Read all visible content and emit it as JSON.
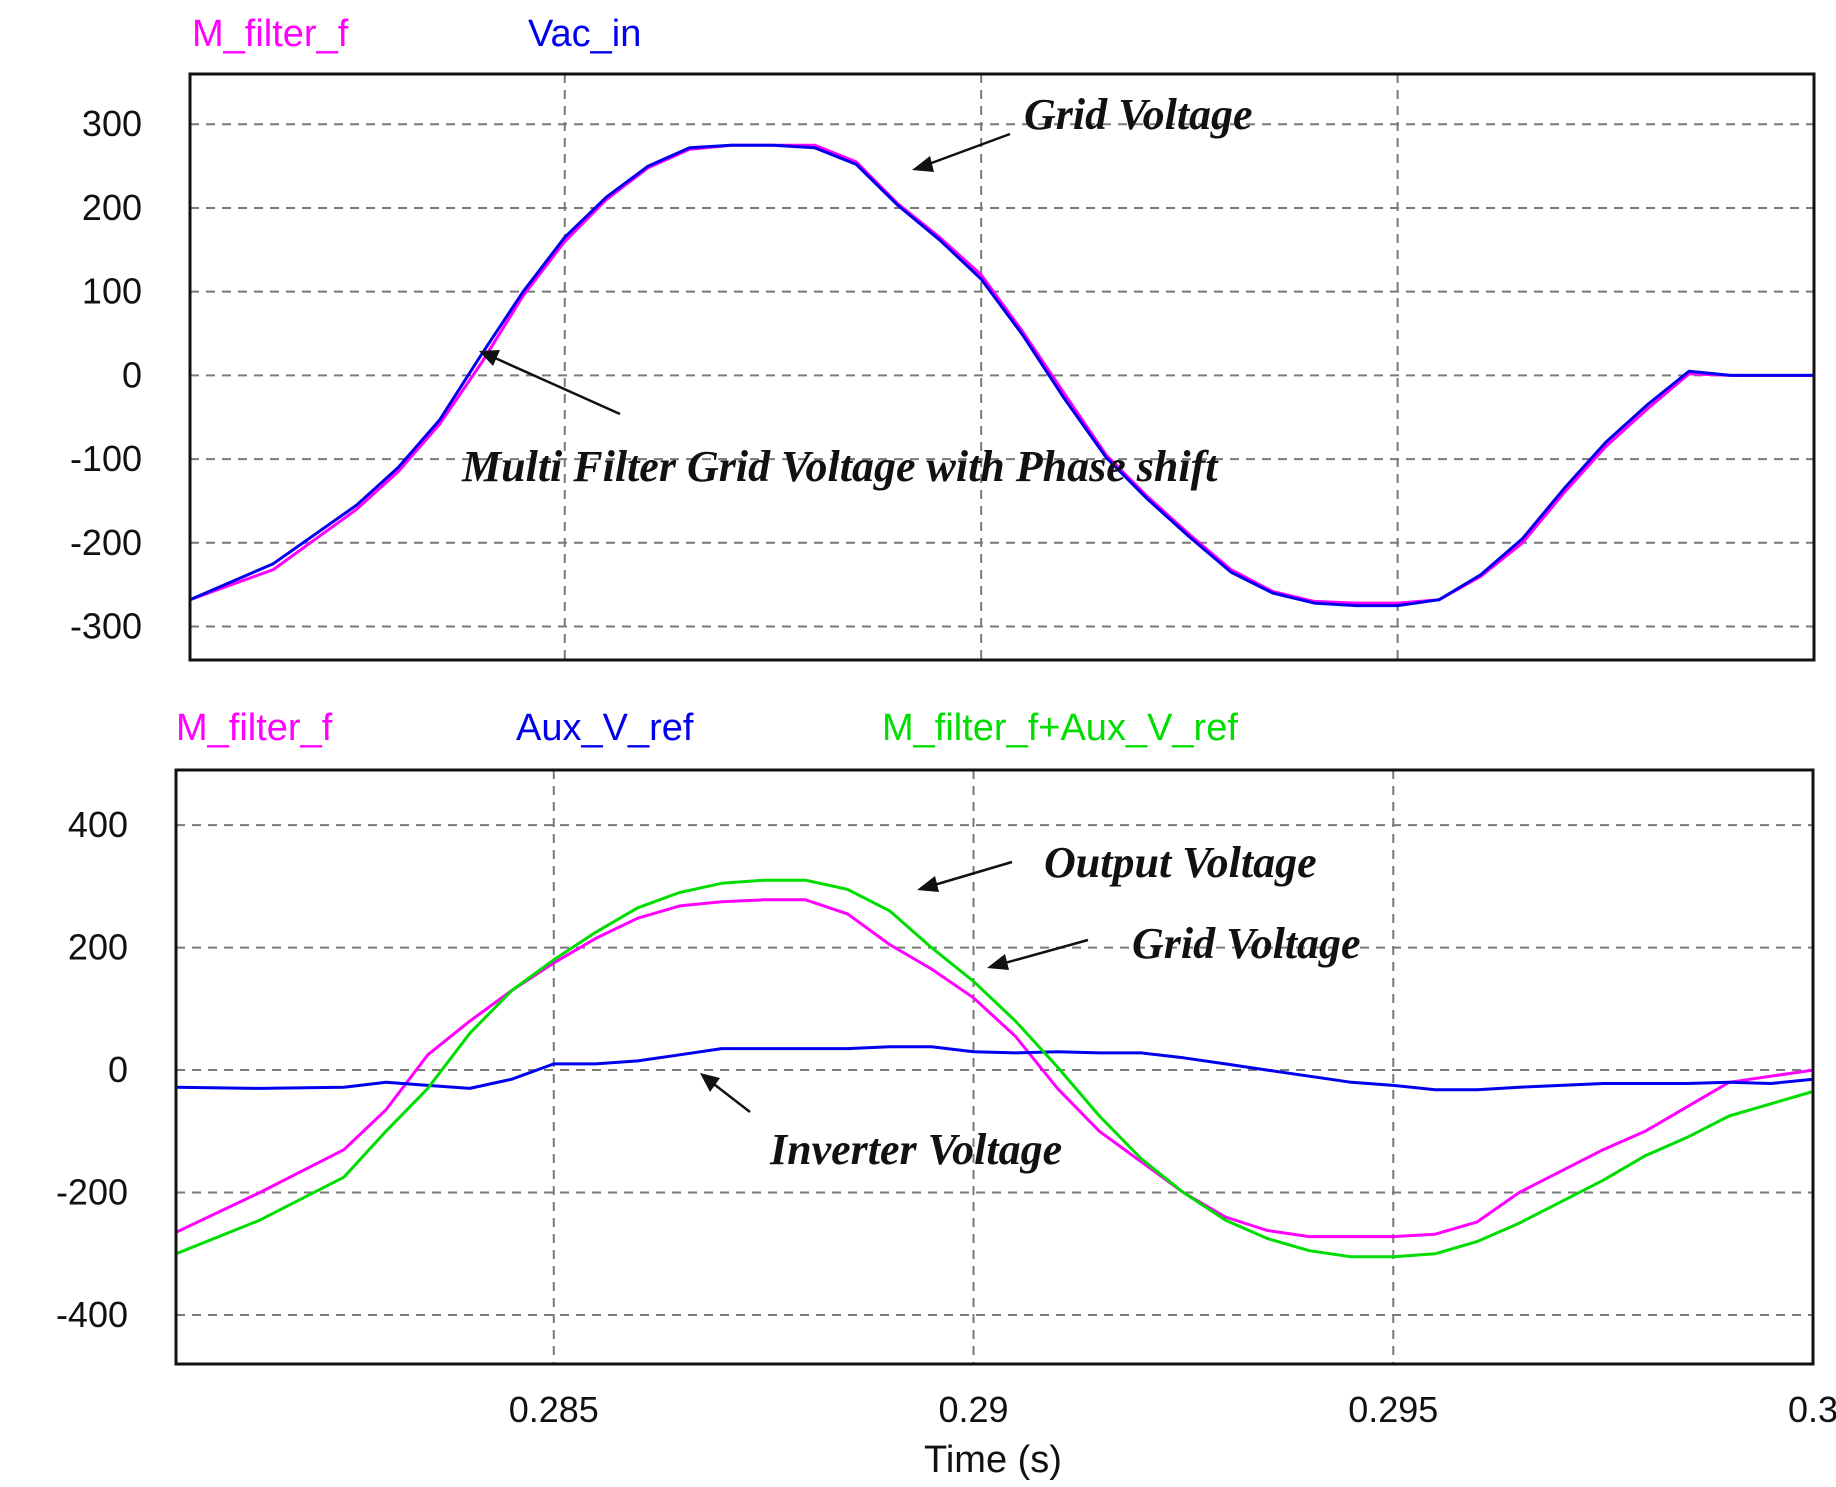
{
  "chart_data": [
    {
      "type": "line",
      "legend": [
        "M_filter_f",
        "Vac_in"
      ],
      "legend_placement": "top-left",
      "grid": true,
      "xlim": [
        0.2805,
        0.3
      ],
      "ylim": [
        -340,
        360
      ],
      "yticks": [
        300,
        200,
        100,
        0,
        -100,
        -200,
        -300
      ],
      "ytick_labels": [
        "300",
        "200",
        "100",
        "0",
        "-100",
        "-200",
        "-300"
      ],
      "xgrid": [
        0.285,
        0.29,
        0.295
      ],
      "series": [
        {
          "name": "M_filter_f",
          "color": "#ff00ff",
          "x": [
            0.2805,
            0.2815,
            0.2825,
            0.283,
            0.2835,
            0.284,
            0.2845,
            0.285,
            0.2855,
            0.286,
            0.2865,
            0.287,
            0.2875,
            0.288,
            0.2885,
            0.289,
            0.2895,
            0.29,
            0.2905,
            0.291,
            0.2915,
            0.292,
            0.2925,
            0.293,
            0.2935,
            0.294,
            0.2945,
            0.295,
            0.2955,
            0.296,
            0.2965,
            0.297,
            0.2975,
            0.298,
            0.2985,
            0.299,
            0.2995,
            0.3
          ],
          "values": [
            -268,
            -232,
            -160,
            -115,
            -58,
            15,
            95,
            160,
            210,
            248,
            270,
            275,
            275,
            275,
            255,
            205,
            165,
            120,
            52,
            -22,
            -95,
            -145,
            -190,
            -232,
            -258,
            -270,
            -272,
            -272,
            -268,
            -240,
            -200,
            -140,
            -85,
            -40,
            2,
            0,
            0,
            0
          ]
        },
        {
          "name": "Vac_in",
          "color": "#0000ee",
          "x": [
            0.2805,
            0.2815,
            0.2825,
            0.283,
            0.2835,
            0.284,
            0.2845,
            0.285,
            0.2855,
            0.286,
            0.2865,
            0.287,
            0.2875,
            0.288,
            0.2885,
            0.289,
            0.2895,
            0.29,
            0.2905,
            0.291,
            0.2915,
            0.292,
            0.2925,
            0.293,
            0.2935,
            0.294,
            0.2945,
            0.295,
            0.2955,
            0.296,
            0.2965,
            0.297,
            0.2975,
            0.298,
            0.2985,
            0.299,
            0.2995,
            0.3
          ],
          "values": [
            -268,
            -225,
            -155,
            -110,
            -53,
            25,
            100,
            165,
            213,
            250,
            272,
            275,
            275,
            272,
            252,
            203,
            162,
            115,
            48,
            -28,
            -98,
            -148,
            -193,
            -235,
            -260,
            -272,
            -275,
            -275,
            -268,
            -238,
            -195,
            -135,
            -80,
            -35,
            5,
            0,
            0,
            0
          ]
        }
      ],
      "annotations": [
        "Grid Voltage",
        "Multi Filter Grid Voltage with Phase shift"
      ]
    },
    {
      "type": "line",
      "legend": [
        "M_filter_f",
        "Aux_V_ref",
        "M_filter_f+Aux_V_ref"
      ],
      "legend_placement": "top-left",
      "grid": true,
      "xlim": [
        0.2805,
        0.3
      ],
      "ylim": [
        -480,
        490
      ],
      "yticks": [
        400,
        200,
        0,
        -200,
        -400
      ],
      "ytick_labels": [
        "400",
        "200",
        "0",
        "-200",
        "-400"
      ],
      "xticks": [
        0.285,
        0.29,
        0.295,
        0.3
      ],
      "xtick_labels": [
        "0.285",
        "0.29",
        "0.295",
        "0.3"
      ],
      "xlabel": "Time (s)",
      "series": [
        {
          "name": "M_filter_f",
          "color": "#ff00ff",
          "x": [
            0.2805,
            0.2815,
            0.2825,
            0.283,
            0.2835,
            0.284,
            0.2845,
            0.285,
            0.2855,
            0.286,
            0.2865,
            0.287,
            0.2875,
            0.288,
            0.2885,
            0.289,
            0.2895,
            0.29,
            0.2905,
            0.291,
            0.2915,
            0.292,
            0.2925,
            0.293,
            0.2935,
            0.294,
            0.2945,
            0.295,
            0.2955,
            0.296,
            0.2965,
            0.297,
            0.2975,
            0.298,
            0.2985,
            0.299,
            0.3
          ],
          "values": [
            -265,
            -200,
            -130,
            -65,
            25,
            80,
            130,
            175,
            215,
            248,
            268,
            275,
            278,
            278,
            255,
            205,
            165,
            118,
            55,
            -30,
            -100,
            -150,
            -200,
            -240,
            -262,
            -272,
            -272,
            -272,
            -268,
            -248,
            -200,
            -165,
            -130,
            -100,
            -60,
            -20,
            0
          ]
        },
        {
          "name": "Aux_V_ref",
          "color": "#0000ee",
          "x": [
            0.2805,
            0.2815,
            0.2825,
            0.283,
            0.2835,
            0.284,
            0.2845,
            0.285,
            0.2855,
            0.286,
            0.2865,
            0.287,
            0.2875,
            0.288,
            0.2885,
            0.289,
            0.2895,
            0.29,
            0.2905,
            0.291,
            0.2915,
            0.292,
            0.2925,
            0.293,
            0.2935,
            0.294,
            0.2945,
            0.295,
            0.2955,
            0.296,
            0.2965,
            0.297,
            0.2975,
            0.298,
            0.2985,
            0.299,
            0.2995,
            0.3
          ],
          "values": [
            -28,
            -30,
            -28,
            -20,
            -25,
            -30,
            -15,
            10,
            10,
            15,
            25,
            35,
            35,
            35,
            35,
            38,
            38,
            30,
            28,
            30,
            28,
            28,
            20,
            10,
            0,
            -10,
            -20,
            -25,
            -32,
            -32,
            -28,
            -25,
            -22,
            -22,
            -22,
            -20,
            -22,
            -15
          ]
        },
        {
          "name": "M_filter_f+Aux_V_ref",
          "color": "#00dd00",
          "x": [
            0.2805,
            0.2815,
            0.2825,
            0.283,
            0.2835,
            0.284,
            0.2845,
            0.285,
            0.2855,
            0.286,
            0.2865,
            0.287,
            0.2875,
            0.288,
            0.2885,
            0.289,
            0.2895,
            0.29,
            0.2905,
            0.291,
            0.2915,
            0.292,
            0.2925,
            0.293,
            0.2935,
            0.294,
            0.2945,
            0.295,
            0.2955,
            0.296,
            0.2965,
            0.297,
            0.2975,
            0.298,
            0.2985,
            0.299,
            0.3
          ],
          "values": [
            -300,
            -245,
            -175,
            -100,
            -30,
            60,
            130,
            180,
            225,
            265,
            290,
            305,
            310,
            310,
            295,
            260,
            200,
            145,
            80,
            5,
            -75,
            -145,
            -200,
            -245,
            -275,
            -295,
            -305,
            -305,
            -300,
            -280,
            -250,
            -215,
            -180,
            -140,
            -110,
            -75,
            -35
          ]
        }
      ],
      "annotations": [
        "Output Voltage",
        "Grid Voltage",
        "Inverter Voltage"
      ]
    }
  ]
}
